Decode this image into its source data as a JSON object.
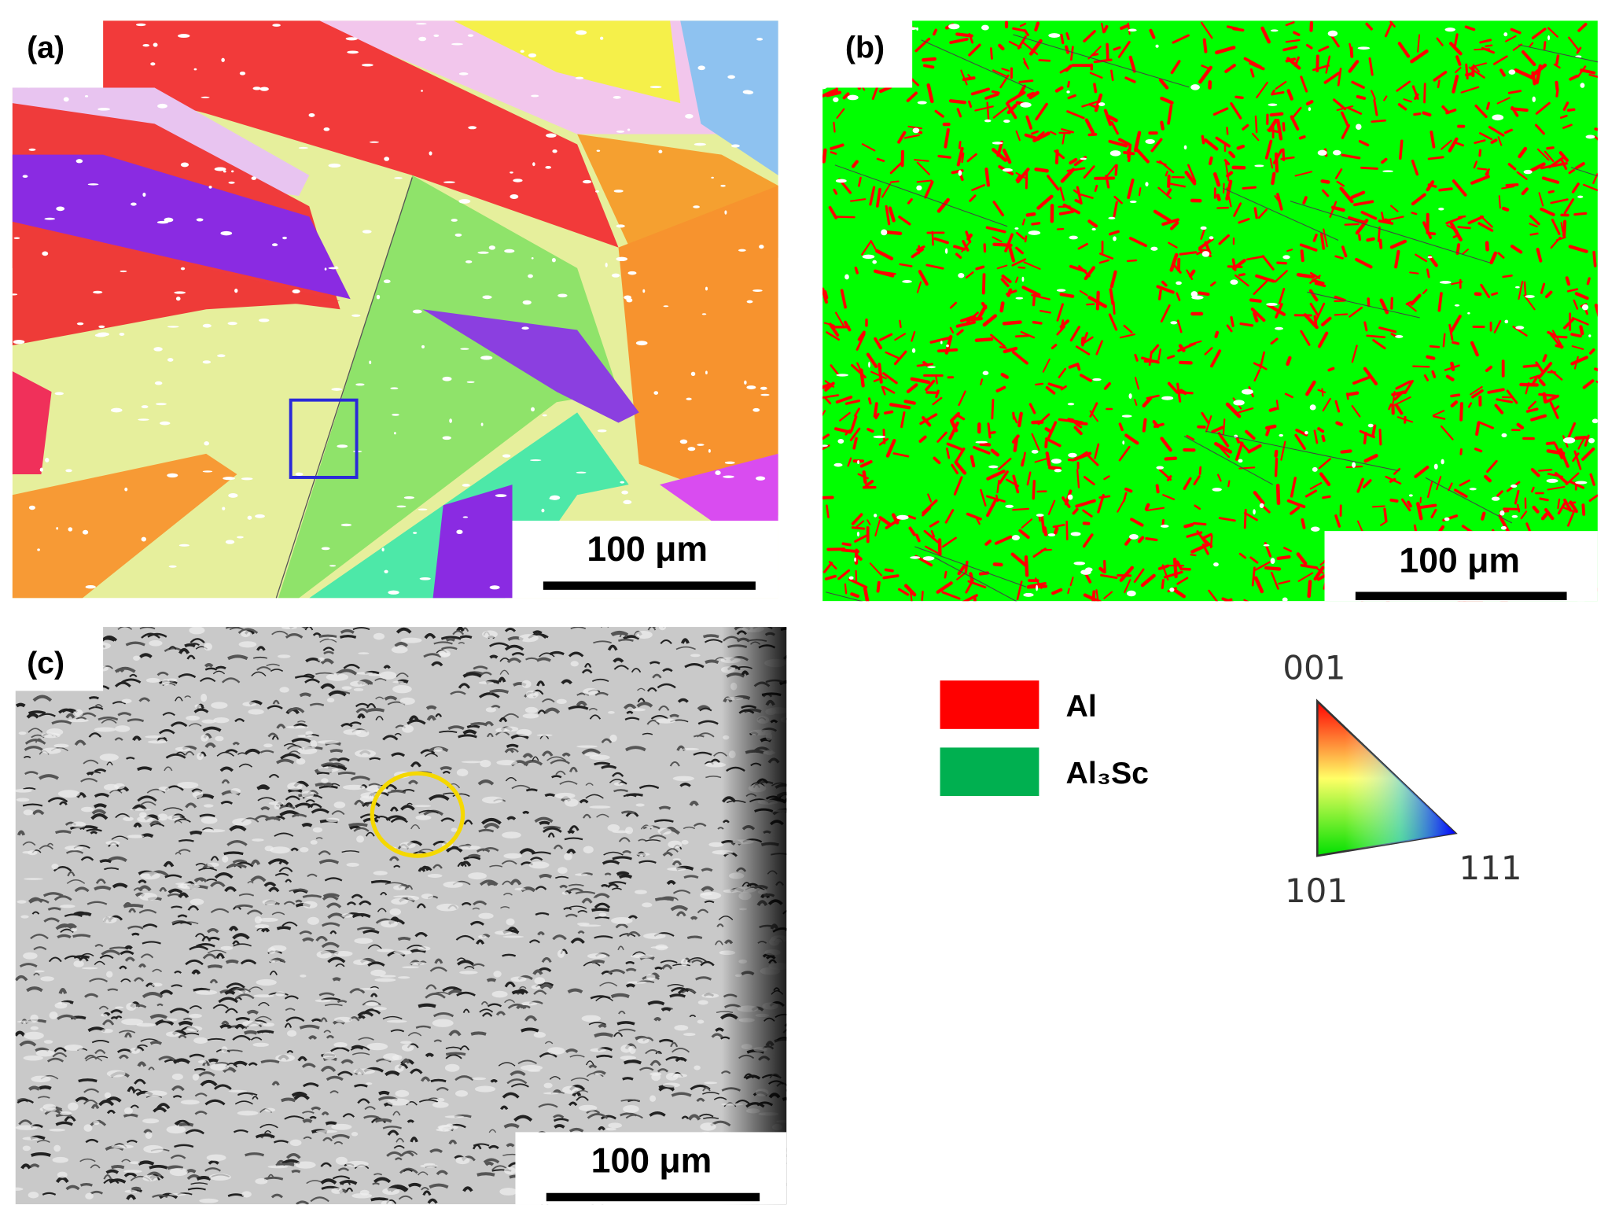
{
  "panels": [
    {
      "label": "(a)",
      "scale_bar": "100 μm"
    },
    {
      "label": "(b)",
      "scale_bar": "100 μm"
    },
    {
      "label": "(c)",
      "scale_bar": "100 μm"
    }
  ],
  "legend": [
    {
      "label": "Al",
      "color": "#ff0000"
    },
    {
      "label": "Al₃Sc",
      "color": "#00b050"
    }
  ],
  "ipf_key": {
    "corners": [
      "001",
      "101",
      "111"
    ]
  }
}
